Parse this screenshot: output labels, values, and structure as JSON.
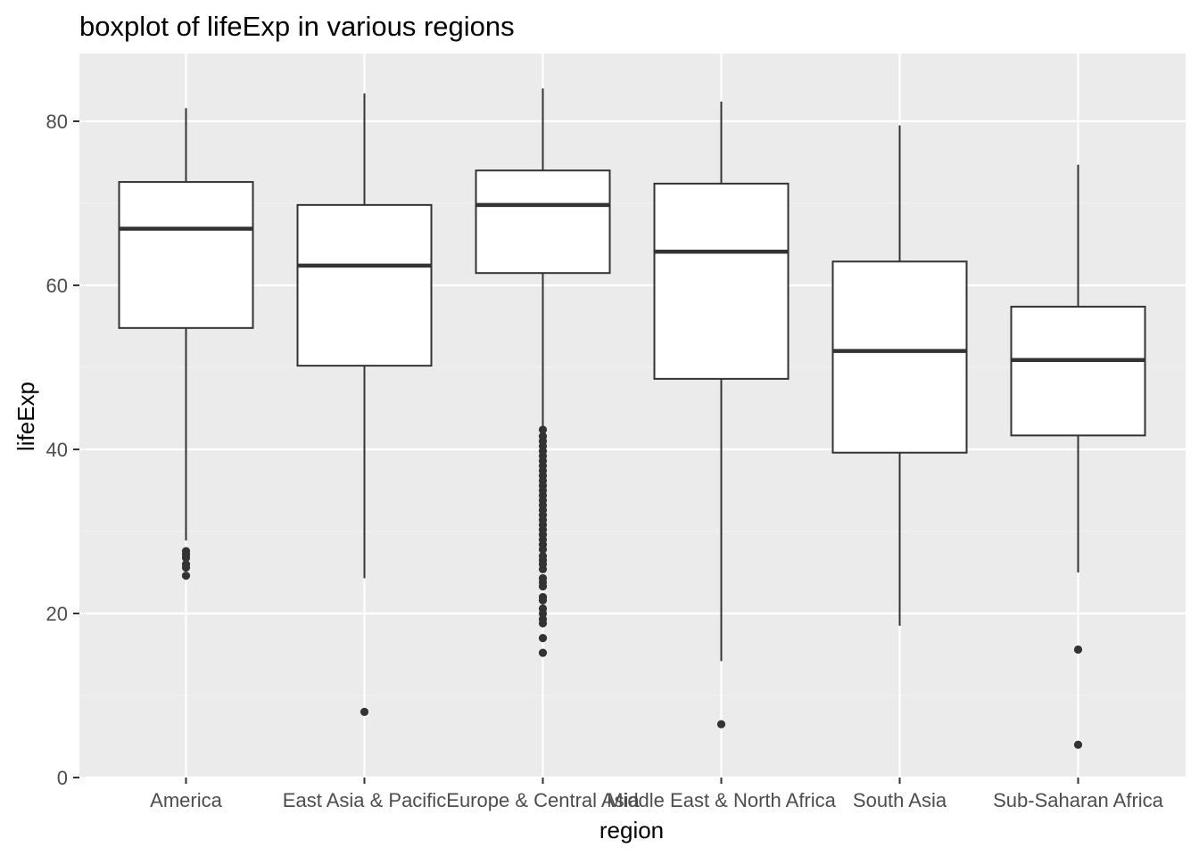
{
  "chart_data": {
    "type": "boxplot",
    "title": "boxplot of lifeExp in various regions",
    "xlabel": "region",
    "ylabel": "lifeExp",
    "ylim": [
      0,
      88
    ],
    "y_ticks": [
      0,
      20,
      40,
      60,
      80
    ],
    "y_minor_ticks": [
      10,
      30,
      50,
      70
    ],
    "categories": [
      "America",
      "East Asia & Pacific",
      "Europe & Central Asia",
      "Middle East & North Africa",
      "South Asia",
      "Sub-Saharan Africa"
    ],
    "boxes": [
      {
        "region": "America",
        "whisker_low": 28.9,
        "q1": 54.8,
        "median": 66.9,
        "q3": 72.6,
        "whisker_high": 81.6,
        "outliers": [
          24.6,
          25.6,
          26.0,
          26.8,
          27.2,
          27.6
        ]
      },
      {
        "region": "East Asia & Pacific",
        "whisker_low": 24.3,
        "q1": 50.2,
        "median": 62.4,
        "q3": 69.8,
        "whisker_high": 83.4,
        "outliers": [
          8.0
        ]
      },
      {
        "region": "Europe & Central Asia",
        "whisker_low": 42.0,
        "q1": 61.5,
        "median": 69.8,
        "q3": 74.0,
        "whisker_high": 84.0,
        "outliers": [
          15.2,
          17.0,
          18.8,
          19.3,
          20.0,
          20.6,
          21.6,
          22.0,
          23.3,
          23.8,
          24.3,
          25.4,
          26.0,
          26.5,
          27.0,
          27.8,
          28.4,
          29.0,
          29.6,
          30.2,
          30.8,
          31.4,
          32.0,
          32.6,
          33.2,
          33.8,
          34.4,
          35.0,
          35.6,
          36.2,
          36.8,
          37.4,
          38.0,
          38.6,
          39.2,
          39.8,
          40.4,
          41.0,
          41.6,
          42.4
        ]
      },
      {
        "region": "Middle East & North Africa",
        "whisker_low": 14.2,
        "q1": 48.6,
        "median": 64.1,
        "q3": 72.4,
        "whisker_high": 82.4,
        "outliers": [
          6.5
        ]
      },
      {
        "region": "South Asia",
        "whisker_low": 18.5,
        "q1": 39.6,
        "median": 52.0,
        "q3": 62.9,
        "whisker_high": 79.5,
        "outliers": []
      },
      {
        "region": "Sub-Saharan Africa",
        "whisker_low": 25.0,
        "q1": 41.7,
        "median": 50.9,
        "q3": 57.4,
        "whisker_high": 74.7,
        "outliers": [
          4.0,
          15.6
        ]
      }
    ],
    "colors": {
      "panel_background": "#ebebeb",
      "grid_major": "#ffffff",
      "grid_minor": "#f5f5f5",
      "box_fill": "#ffffff",
      "box_line": "#333333",
      "outlier": "#333333",
      "tick": "#333333"
    },
    "grid": true,
    "legend": "none"
  }
}
